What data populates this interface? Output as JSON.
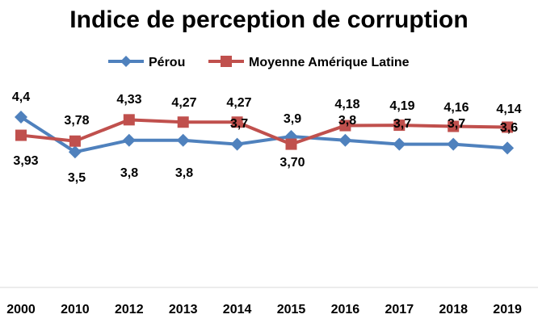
{
  "chart_data": {
    "type": "line",
    "title": "Indice de perception de corruption",
    "categories": [
      "2000",
      "2010",
      "2012",
      "2013",
      "2014",
      "2015",
      "2016",
      "2017",
      "2018",
      "2019"
    ],
    "series": [
      {
        "name": "Pérou",
        "color": "#4F81BD",
        "marker": "diamond",
        "values": [
          4.4,
          3.5,
          3.8,
          3.8,
          3.7,
          3.9,
          3.8,
          3.7,
          3.7,
          3.6
        ],
        "labels": [
          "4,4",
          "3,5",
          "3,8",
          "3,8",
          "3,7",
          "3,9",
          "3,8",
          "3,7",
          "3,7",
          "3,6"
        ]
      },
      {
        "name": "Moyenne Amérique Latine",
        "color": "#C0504D",
        "marker": "square",
        "values": [
          3.93,
          3.78,
          4.33,
          4.27,
          4.27,
          3.7,
          4.18,
          4.19,
          4.16,
          4.14
        ],
        "labels": [
          "3,93",
          "3,78",
          "4,33",
          "4,27",
          "4,27",
          "3,70",
          "4,18",
          "4,19",
          "4,16",
          "4,14"
        ]
      }
    ],
    "legend_position": "top",
    "grid": false,
    "xlabel": "",
    "ylabel": ""
  }
}
